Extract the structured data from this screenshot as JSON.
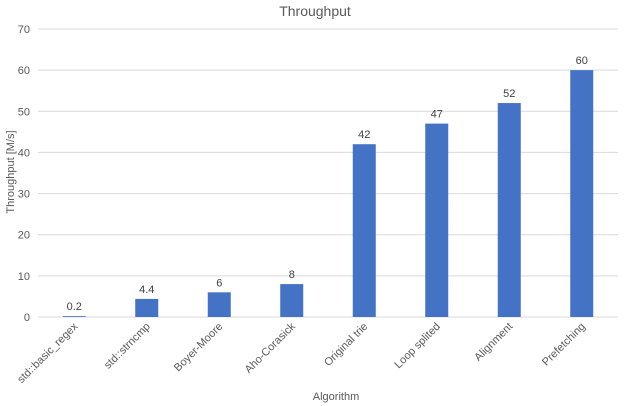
{
  "chart_data": {
    "type": "bar",
    "title": "Throughput",
    "xlabel": "Algorithm",
    "ylabel": "Throughput [M/s]",
    "ylim": [
      0,
      70
    ],
    "yticks": [
      0,
      10,
      20,
      30,
      40,
      50,
      60,
      70
    ],
    "grid": true,
    "categories": [
      "std::basic_regex",
      "std::strncmp",
      "Boyer-Moore",
      "Aho-Corasick",
      "Original trie",
      "Loop splited",
      "Alignment",
      "Prefetching"
    ],
    "values": [
      0.2,
      4.4,
      6,
      8,
      42,
      47,
      52,
      60
    ],
    "data_labels": [
      "0.2",
      "4.4",
      "6",
      "8",
      "42",
      "47",
      "52",
      "60"
    ],
    "bar_color": "#4472c4"
  }
}
